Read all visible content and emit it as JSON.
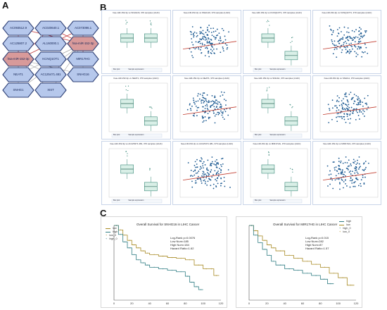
{
  "panels": {
    "a": "A",
    "b": "B",
    "c": "C"
  },
  "network": {
    "nodes": [
      {
        "id": "n1",
        "label": "AC093512.9",
        "type": "lnc"
      },
      {
        "id": "n2",
        "label": "AC020640.1",
        "type": "lnc"
      },
      {
        "id": "n3",
        "label": "AC073096.1",
        "type": "lnc"
      },
      {
        "id": "n4",
        "label": "AC125807.2",
        "type": "lnc"
      },
      {
        "id": "n5",
        "label": "AL160000.1",
        "type": "lnc"
      },
      {
        "id": "n6",
        "label": "hsa-miR-152-3p",
        "type": "mir"
      },
      {
        "id": "n7",
        "label": "hsa-miR-152-3p",
        "type": "mir"
      },
      {
        "id": "n8",
        "label": "KCNQ1OT1",
        "type": "lnc"
      },
      {
        "id": "n9",
        "label": "MIR17HG",
        "type": "lnc"
      },
      {
        "id": "n10",
        "label": "NEAT1",
        "type": "lnc"
      },
      {
        "id": "n11",
        "label": "AC125471.481",
        "type": "lnc"
      },
      {
        "id": "n12",
        "label": "SNHG16",
        "type": "lnc"
      },
      {
        "id": "n13",
        "label": "SNHG1",
        "type": "lnc"
      },
      {
        "id": "n14",
        "label": "XIST",
        "type": "lnc"
      }
    ],
    "colors": {
      "lnc": "#b6c8ec",
      "mir": "#d89a9a",
      "stroke": "#2c3e74",
      "edge_gray": "#9a9a9a",
      "edge_red": "#c63c3c"
    }
  },
  "correlation_grid": {
    "titles": [
      "hsa-miR-152-3p vs SNHG16, 370 samples (LIHC)",
      "hsa-miR-152-3p vs SNHG16, 370 samples (LIHC)",
      "hsa-miR-152-3p vs KCNQ1OT1, 370 samples (LIHC)",
      "hsa-miR-152-3p vs KCNQ1OT1, 370 samples (LIHC)",
      "hsa-miR-152-3p vs NEAT1, 370 samples (LIHC)",
      "hsa-miR-152-3p vs NEAT1, 370 samples (LIHC)",
      "hsa-miR-152-3p vs SNHG1, 370 samples (LIHC)",
      "hsa-miR-152-3p vs SNHG1, 370 samples (LIHC)",
      "hsa-miR-152-3p vs AC125471.481, 370 samples (LIHC)",
      "hsa-miR-152-3p vs AC125471.481, 370 samples (LIHC)",
      "hsa-miR-152-3p vs MIR17HG, 370 samples (LIHC)",
      "hsa-miR-152-3p vs MIR17HG, 370 samples (LIHC)"
    ],
    "box_legend": {
      "a": "Box plot",
      "b": "Sample expression"
    },
    "colors": {
      "box": "#d9efe7",
      "box_stroke": "#3a8a7a",
      "dot": "#1c5a92",
      "fit": "#c0392b"
    }
  },
  "survival": [
    {
      "title": "Overall Survival for SNHG16 in LIHC Cancer",
      "stats": [
        "Log-Rank p=0.0076",
        "Low Num=185",
        "High Num=184",
        "Hazard Ratio=1.62"
      ],
      "legend": [
        "low",
        "high",
        "low_0",
        "high_0"
      ],
      "x_ticks": [
        "0",
        "20",
        "40",
        "60",
        "80",
        "100",
        "120"
      ],
      "chart_data": {
        "type": "line",
        "xlim": [
          0,
          120
        ],
        "ylim": [
          0,
          1
        ],
        "series": [
          {
            "name": "low",
            "color": "#a88a24",
            "x": [
              0,
              5,
              10,
              15,
              20,
              25,
              30,
              35,
              40,
              50,
              60,
              70,
              80,
              90,
              100,
              107,
              112,
              118
            ],
            "y": [
              1,
              0.94,
              0.87,
              0.8,
              0.74,
              0.7,
              0.66,
              0.63,
              0.61,
              0.59,
              0.57,
              0.56,
              0.54,
              0.47,
              0.42,
              0.42,
              0.33,
              0.33
            ]
          },
          {
            "name": "high",
            "color": "#2e7c82",
            "x": [
              0,
              5,
              10,
              15,
              20,
              25,
              30,
              35,
              40,
              50,
              60,
              70,
              80,
              85,
              90,
              95,
              100
            ],
            "y": [
              1,
              0.88,
              0.78,
              0.7,
              0.61,
              0.54,
              0.5,
              0.47,
              0.44,
              0.42,
              0.4,
              0.38,
              0.32,
              0.24,
              0.18,
              0.14,
              0.14
            ]
          }
        ]
      }
    },
    {
      "title": "Overall Survival for MIR17HG in LIHC Cancer",
      "stats": [
        "Log-Rank p=0.015",
        "Low Num=282",
        "High Num=87",
        "Hazard Ratio=1.57"
      ],
      "legend": [
        "high",
        "low",
        "high_0",
        "low_0"
      ],
      "x_ticks": [
        "0",
        "20",
        "40",
        "60",
        "80",
        "100",
        "120"
      ],
      "chart_data": {
        "type": "line",
        "xlim": [
          0,
          120
        ],
        "ylim": [
          0,
          1
        ],
        "series": [
          {
            "name": "low",
            "color": "#a88a24",
            "x": [
              0,
              5,
              10,
              15,
              20,
              25,
              30,
              40,
              50,
              60,
              70,
              80,
              90,
              100,
              110,
              118
            ],
            "y": [
              1,
              0.93,
              0.86,
              0.8,
              0.74,
              0.7,
              0.66,
              0.6,
              0.56,
              0.52,
              0.48,
              0.44,
              0.36,
              0.3,
              0.2,
              0.2
            ]
          },
          {
            "name": "high",
            "color": "#2e7c82",
            "x": [
              0,
              5,
              10,
              15,
              20,
              25,
              30,
              40,
              50,
              60,
              70,
              80,
              88,
              95
            ],
            "y": [
              1,
              0.87,
              0.77,
              0.68,
              0.6,
              0.52,
              0.47,
              0.42,
              0.4,
              0.36,
              0.33,
              0.28,
              0.22,
              0.22
            ]
          }
        ]
      }
    }
  ]
}
